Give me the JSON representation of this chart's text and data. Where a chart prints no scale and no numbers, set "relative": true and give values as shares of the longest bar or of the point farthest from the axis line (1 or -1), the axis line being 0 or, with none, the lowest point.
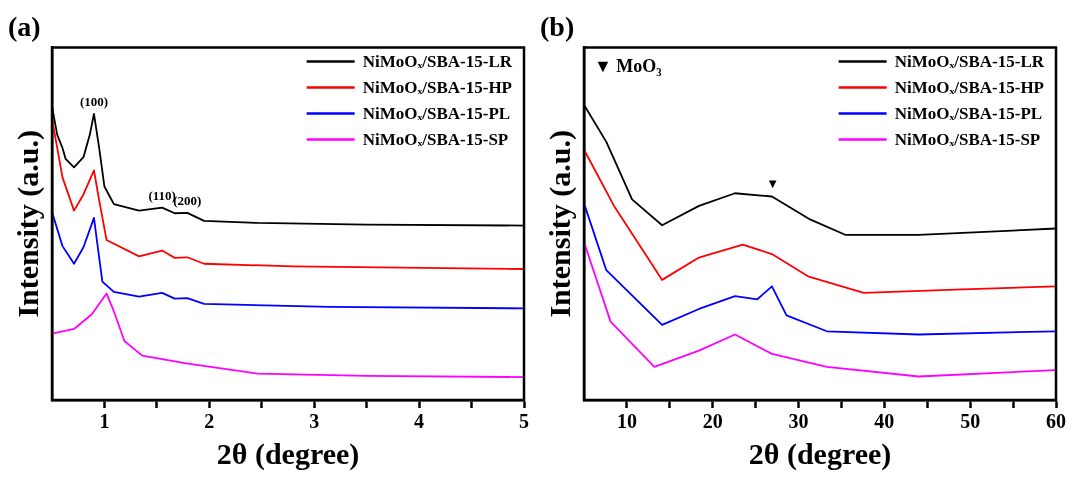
{
  "chart_data": [
    {
      "type": "line",
      "title": "(a)",
      "xlabel": "2θ (degree)",
      "ylabel": "Intensity (a.u.)",
      "relative": true,
      "legend": "top right",
      "marker": "none",
      "line_style": "solid",
      "grid": false,
      "xlim": [
        0.5,
        5
      ],
      "xticks": [
        1,
        {
          "value": 1.5,
          "label": null
        },
        2,
        {
          "value": 2.5,
          "label": null
        },
        3,
        {
          "value": 3.5,
          "label": null
        },
        4,
        {
          "value": 4.5,
          "label": null
        },
        5
      ],
      "annotations": [
        {
          "text": "(100)",
          "x": 0.9,
          "y": 0.974
        },
        {
          "text": "(110)",
          "x": 1.55,
          "y": 0.655
        },
        {
          "text": "(200)",
          "x": 1.79,
          "y": 0.637
        }
      ],
      "series": [
        {
          "name": "NiMoOₓ/SBA-15-LR",
          "color": "#000000",
          "x": [
            0.5,
            0.55,
            0.6,
            0.63,
            0.71,
            0.8,
            0.86,
            0.9,
            0.95,
            1.0,
            1.09,
            1.33,
            1.55,
            1.67,
            1.79,
            1.95,
            2.46,
            3.5,
            5
          ],
          "values": [
            1.0,
            0.903,
            0.858,
            0.821,
            0.792,
            0.827,
            0.903,
            0.974,
            0.858,
            0.727,
            0.667,
            0.645,
            0.655,
            0.636,
            0.637,
            0.61,
            0.603,
            0.597,
            0.594
          ]
        },
        {
          "name": "NiMoOₓ/SBA-15-HP",
          "color": "#ff0000",
          "x": [
            0.5,
            0.6,
            0.71,
            0.8,
            0.9,
            0.95,
            1.02,
            1.33,
            1.55,
            1.67,
            1.79,
            1.95,
            2.8,
            5
          ],
          "values": [
            0.958,
            0.758,
            0.645,
            0.7,
            0.782,
            0.68,
            0.545,
            0.489,
            0.509,
            0.484,
            0.486,
            0.464,
            0.455,
            0.446
          ]
        },
        {
          "name": "NiMoOₓ/SBA-15-PL",
          "color": "#0000ff",
          "x": [
            0.5,
            0.6,
            0.71,
            0.8,
            0.9,
            0.98,
            1.09,
            1.33,
            1.55,
            1.67,
            1.79,
            1.95,
            3.15,
            5
          ],
          "values": [
            0.64,
            0.524,
            0.464,
            0.52,
            0.62,
            0.403,
            0.368,
            0.352,
            0.365,
            0.345,
            0.347,
            0.327,
            0.317,
            0.312
          ]
        },
        {
          "name": "NiMoOₓ/SBA-15-SP",
          "color": "#ff00ff",
          "x": [
            0.5,
            0.71,
            0.88,
            1.02,
            1.09,
            1.19,
            1.36,
            1.78,
            2.46,
            3.5,
            5
          ],
          "values": [
            0.226,
            0.242,
            0.292,
            0.363,
            0.302,
            0.201,
            0.151,
            0.125,
            0.09,
            0.082,
            0.078
          ]
        }
      ]
    },
    {
      "type": "line",
      "title": "(b)",
      "xlabel": "2θ (degree)",
      "ylabel": "Intensity (a.u.)",
      "relative": true,
      "legend": "top right",
      "marker": "none",
      "line_style": "solid",
      "grid": false,
      "xlim": [
        5,
        60
      ],
      "xticks": [
        10,
        {
          "value": 15,
          "label": null
        },
        20,
        {
          "value": 25,
          "label": null
        },
        30,
        {
          "value": 35,
          "label": null
        },
        40,
        {
          "value": 45,
          "label": null
        },
        50,
        {
          "value": 55,
          "label": null
        },
        60
      ],
      "annotations": [
        "▼ MoO₃",
        {
          "text": "▼",
          "x": 27,
          "y": 0.693
        }
      ],
      "series": [
        {
          "name": "NiMoOₓ/SBA-15-LR",
          "color": "#000000",
          "x": [
            5.1,
            7.6,
            10.6,
            14.1,
            18.4,
            22.6,
            26.9,
            31.2,
            35.5,
            44,
            60
          ],
          "values": [
            1.0,
            0.879,
            0.683,
            0.595,
            0.661,
            0.704,
            0.693,
            0.617,
            0.562,
            0.562,
            0.584
          ]
        },
        {
          "name": "NiMoOₓ/SBA-15-HP",
          "color": "#ff0000",
          "x": [
            5.1,
            8.5,
            14.1,
            18.4,
            23.5,
            26.9,
            31.2,
            37.6,
            48.3,
            60
          ],
          "values": [
            0.847,
            0.661,
            0.409,
            0.485,
            0.529,
            0.497,
            0.42,
            0.365,
            0.376,
            0.387
          ]
        },
        {
          "name": "NiMoOₓ/SBA-15-PL",
          "color": "#0000ff",
          "x": [
            5.1,
            7.6,
            14.1,
            18.4,
            22.6,
            25.2,
            26.9,
            28.6,
            33.3,
            44,
            60
          ],
          "values": [
            0.661,
            0.442,
            0.256,
            0.31,
            0.354,
            0.343,
            0.387,
            0.288,
            0.234,
            0.223,
            0.234
          ]
        },
        {
          "name": "NiMoOₓ/SBA-15-SP",
          "color": "#ff00ff",
          "x": [
            5.1,
            8.1,
            13.2,
            18.4,
            22.6,
            26.9,
            33.3,
            44,
            60
          ],
          "values": [
            0.529,
            0.267,
            0.113,
            0.168,
            0.223,
            0.157,
            0.113,
            0.08,
            0.102
          ]
        }
      ]
    }
  ]
}
